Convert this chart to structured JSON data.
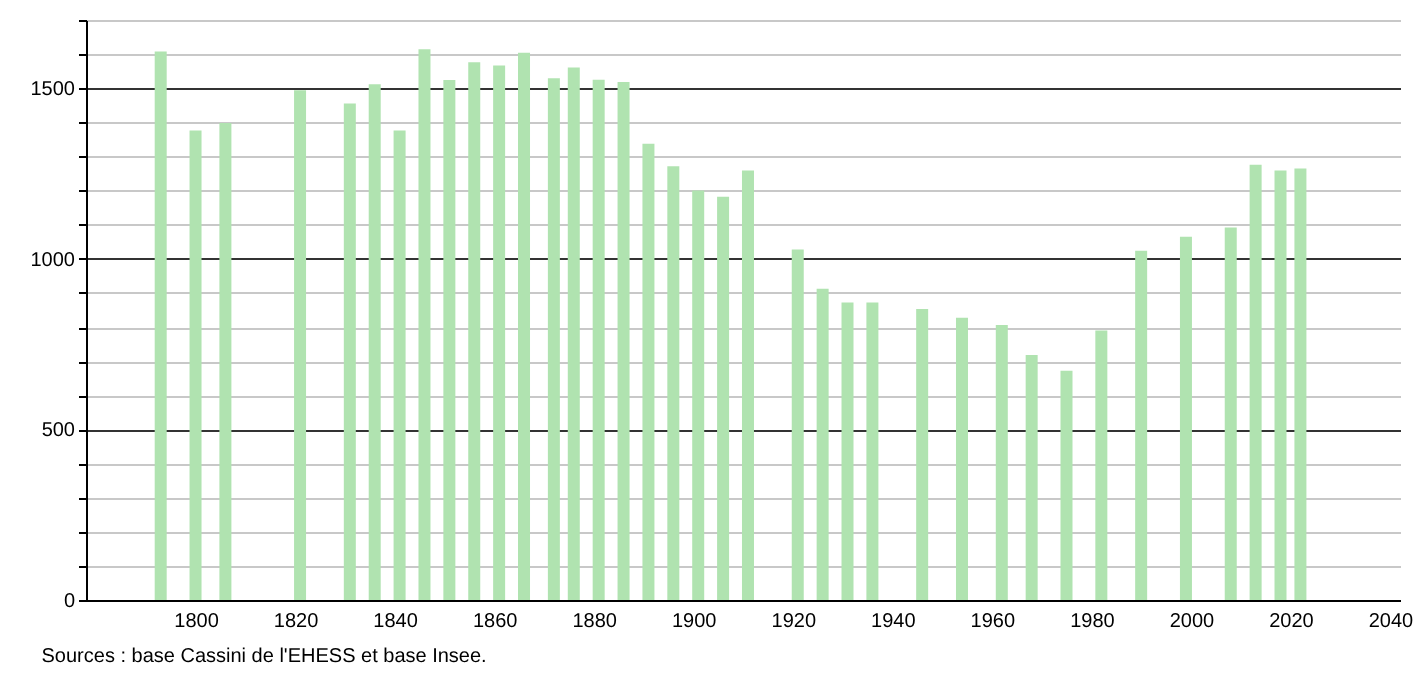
{
  "chart_data": {
    "type": "bar",
    "annotations": [
      "Sources : base Cassini de l'EHESS et base Insee."
    ],
    "x": [
      1793,
      1800,
      1806,
      1821,
      1831,
      1836,
      1841,
      1846,
      1851,
      1856,
      1861,
      1866,
      1872,
      1876,
      1881,
      1886,
      1891,
      1896,
      1901,
      1906,
      1911,
      1921,
      1926,
      1931,
      1936,
      1946,
      1954,
      1962,
      1968,
      1975,
      1982,
      1990,
      1999,
      2008,
      2013,
      2018,
      2022
    ],
    "series": [
      {
        "color": "#b0e3b0",
        "values": [
          1608,
          1376,
          1398,
          1494,
          1455,
          1512,
          1376,
          1614,
          1524,
          1576,
          1567,
          1604,
          1529,
          1561,
          1525,
          1518,
          1337,
          1271,
          1200,
          1182,
          1259,
          1027,
          912,
          872,
          872,
          853,
          827,
          806,
          718,
          672,
          790,
          1024,
          1065,
          1092,
          1276,
          1259,
          1265
        ]
      }
    ],
    "xlim": [
      1780,
      2040
    ],
    "xticks": [
      1800,
      1820,
      1840,
      1860,
      1880,
      1900,
      1920,
      1940,
      1960,
      1980,
      2000,
      2020,
      2040
    ],
    "ylim": [
      0,
      1700
    ],
    "yticks": [
      0,
      {
        "value": 100,
        "label": null
      },
      {
        "value": 200,
        "label": null
      },
      {
        "value": 300,
        "label": null
      },
      {
        "value": 400,
        "label": null
      },
      500,
      {
        "value": 600,
        "label": null
      },
      {
        "value": 700,
        "label": null
      },
      {
        "value": 800,
        "label": null
      },
      {
        "value": 900,
        "label": null
      },
      1000,
      {
        "value": 1100,
        "label": null
      },
      {
        "value": 1200,
        "label": null
      },
      {
        "value": 1300,
        "label": null
      },
      {
        "value": 1400,
        "label": null
      },
      1500,
      {
        "value": 1600,
        "label": null
      },
      {
        "value": 1700,
        "label": null
      }
    ],
    "grid": "y"
  }
}
